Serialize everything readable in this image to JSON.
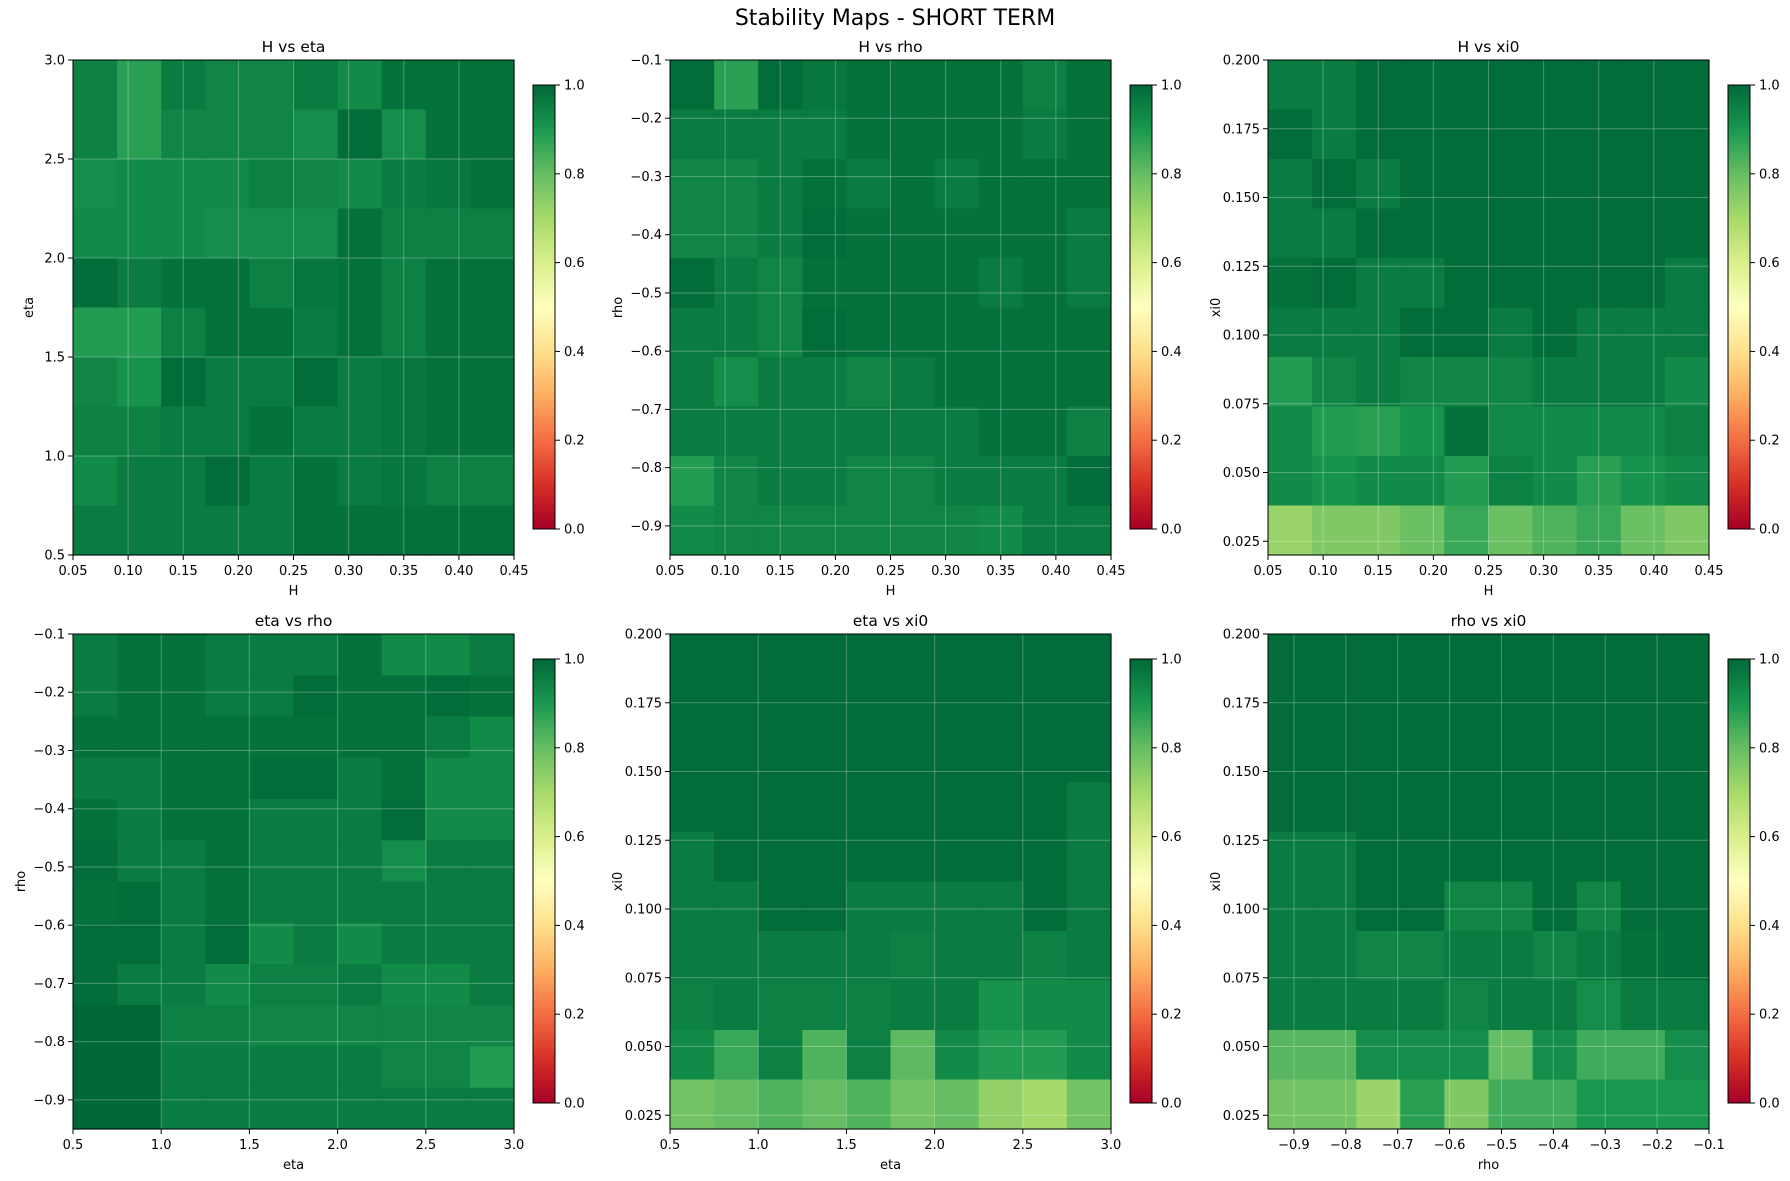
{
  "figure_title": "Stability Maps - SHORT TERM",
  "colormap": {
    "name": "RdYlGn",
    "stops": [
      "#a50026",
      "#d73027",
      "#f46d43",
      "#fdae61",
      "#fee08b",
      "#ffffbf",
      "#d9ef8b",
      "#a6d96a",
      "#66bd63",
      "#1a9850",
      "#006837"
    ],
    "range": [
      0,
      1
    ],
    "ticks": [
      0.0,
      0.2,
      0.4,
      0.6,
      0.8,
      1.0
    ],
    "tick_labels": [
      "0.0",
      "0.2",
      "0.4",
      "0.6",
      "0.8",
      "1.0"
    ]
  },
  "chart_data": [
    {
      "type": "heatmap",
      "title": "H vs eta",
      "xlabel": "H",
      "ylabel": "eta",
      "xlim": [
        0.05,
        0.45
      ],
      "ylim": [
        0.5,
        3.0
      ],
      "xticks": [
        0.05,
        0.1,
        0.15,
        0.2,
        0.25,
        0.3,
        0.35,
        0.4,
        0.45
      ],
      "xtick_labels": [
        "0.05",
        "0.10",
        "0.15",
        "0.20",
        "0.25",
        "0.30",
        "0.35",
        "0.40",
        "0.45"
      ],
      "yticks": [
        0.5,
        1.0,
        1.5,
        2.0,
        2.5,
        3.0
      ],
      "ytick_labels": [
        "0.5",
        "1.0",
        "1.5",
        "2.0",
        "2.5",
        "3.0"
      ],
      "values_top_to_bottom": [
        [
          0.95,
          0.88,
          0.96,
          0.94,
          0.94,
          0.96,
          0.93,
          0.98,
          0.98,
          0.98
        ],
        [
          0.95,
          0.88,
          0.94,
          0.94,
          0.94,
          0.92,
          0.99,
          0.92,
          0.98,
          0.98
        ],
        [
          0.92,
          0.93,
          0.93,
          0.93,
          0.95,
          0.94,
          0.93,
          0.96,
          0.97,
          0.98
        ],
        [
          0.93,
          0.93,
          0.93,
          0.92,
          0.92,
          0.92,
          0.98,
          0.95,
          0.95,
          0.95
        ],
        [
          0.99,
          0.96,
          0.98,
          0.98,
          0.95,
          0.97,
          0.98,
          0.95,
          0.98,
          0.98
        ],
        [
          0.89,
          0.89,
          0.95,
          0.98,
          0.98,
          0.96,
          0.98,
          0.95,
          0.98,
          0.98
        ],
        [
          0.94,
          0.91,
          0.99,
          0.96,
          0.96,
          0.99,
          0.96,
          0.97,
          0.98,
          0.98
        ],
        [
          0.95,
          0.95,
          0.96,
          0.96,
          0.98,
          0.96,
          0.96,
          0.97,
          0.98,
          0.98
        ],
        [
          0.93,
          0.96,
          0.96,
          0.99,
          0.96,
          0.98,
          0.96,
          0.97,
          0.95,
          0.95
        ],
        [
          0.96,
          0.96,
          0.96,
          0.96,
          0.96,
          0.98,
          0.98,
          0.98,
          0.98,
          0.98
        ]
      ]
    },
    {
      "type": "heatmap",
      "title": "H vs rho",
      "xlabel": "H",
      "ylabel": "rho",
      "xlim": [
        0.05,
        0.45
      ],
      "ylim": [
        -0.95,
        -0.1
      ],
      "xticks": [
        0.05,
        0.1,
        0.15,
        0.2,
        0.25,
        0.3,
        0.35,
        0.4,
        0.45
      ],
      "xtick_labels": [
        "0.05",
        "0.10",
        "0.15",
        "0.20",
        "0.25",
        "0.30",
        "0.35",
        "0.40",
        "0.45"
      ],
      "yticks": [
        -0.1,
        -0.2,
        -0.3,
        -0.4,
        -0.5,
        -0.6,
        -0.7,
        -0.8,
        -0.9
      ],
      "ytick_labels": [
        "−0.1",
        "−0.2",
        "−0.3",
        "−0.4",
        "−0.5",
        "−0.6",
        "−0.7",
        "−0.8",
        "−0.9"
      ],
      "values_top_to_bottom": [
        [
          0.99,
          0.88,
          0.99,
          0.97,
          0.98,
          0.98,
          0.98,
          0.98,
          0.95,
          0.98
        ],
        [
          0.96,
          0.96,
          0.96,
          0.96,
          0.98,
          0.98,
          0.98,
          0.98,
          0.96,
          0.98
        ],
        [
          0.94,
          0.94,
          0.96,
          0.98,
          0.96,
          0.98,
          0.96,
          0.98,
          0.98,
          0.98
        ],
        [
          0.94,
          0.94,
          0.96,
          0.99,
          0.98,
          0.98,
          0.98,
          0.98,
          0.98,
          0.96
        ],
        [
          0.99,
          0.96,
          0.94,
          0.98,
          0.98,
          0.98,
          0.98,
          0.96,
          0.98,
          0.96
        ],
        [
          0.96,
          0.96,
          0.94,
          0.99,
          0.98,
          0.98,
          0.98,
          0.98,
          0.98,
          0.98
        ],
        [
          0.96,
          0.92,
          0.96,
          0.96,
          0.94,
          0.96,
          0.98,
          0.98,
          0.98,
          0.98
        ],
        [
          0.96,
          0.96,
          0.96,
          0.96,
          0.96,
          0.96,
          0.96,
          0.98,
          0.98,
          0.95
        ],
        [
          0.89,
          0.94,
          0.96,
          0.96,
          0.94,
          0.94,
          0.96,
          0.96,
          0.96,
          0.99
        ],
        [
          0.93,
          0.94,
          0.94,
          0.94,
          0.94,
          0.94,
          0.94,
          0.93,
          0.96,
          0.96
        ]
      ]
    },
    {
      "type": "heatmap",
      "title": "H vs xi0",
      "xlabel": "H",
      "ylabel": "xi0",
      "xlim": [
        0.05,
        0.45
      ],
      "ylim": [
        0.02,
        0.2
      ],
      "xticks": [
        0.05,
        0.1,
        0.15,
        0.2,
        0.25,
        0.3,
        0.35,
        0.4,
        0.45
      ],
      "xtick_labels": [
        "0.05",
        "0.10",
        "0.15",
        "0.20",
        "0.25",
        "0.30",
        "0.35",
        "0.40",
        "0.45"
      ],
      "yticks": [
        0.025,
        0.05,
        0.075,
        0.1,
        0.125,
        0.15,
        0.175,
        0.2
      ],
      "ytick_labels": [
        "0.025",
        "0.050",
        "0.075",
        "0.100",
        "0.125",
        "0.150",
        "0.175",
        "0.200"
      ],
      "values_top_to_bottom": [
        [
          0.96,
          0.96,
          0.99,
          0.99,
          0.99,
          0.99,
          0.99,
          0.99,
          0.99,
          0.99
        ],
        [
          0.99,
          0.96,
          0.99,
          0.99,
          0.99,
          0.99,
          0.99,
          0.99,
          0.99,
          0.99
        ],
        [
          0.96,
          0.99,
          0.96,
          0.99,
          0.99,
          0.99,
          0.99,
          0.99,
          0.99,
          0.99
        ],
        [
          0.96,
          0.96,
          0.99,
          0.99,
          0.99,
          0.99,
          0.99,
          0.99,
          0.99,
          0.99
        ],
        [
          0.98,
          0.99,
          0.96,
          0.96,
          0.99,
          0.99,
          0.99,
          0.99,
          0.99,
          0.96
        ],
        [
          0.96,
          0.96,
          0.96,
          0.99,
          0.99,
          0.96,
          0.99,
          0.96,
          0.96,
          0.96
        ],
        [
          0.89,
          0.94,
          0.96,
          0.94,
          0.94,
          0.94,
          0.96,
          0.96,
          0.96,
          0.93
        ],
        [
          0.93,
          0.89,
          0.88,
          0.91,
          0.98,
          0.93,
          0.93,
          0.93,
          0.93,
          0.95
        ],
        [
          0.93,
          0.91,
          0.93,
          0.93,
          0.89,
          0.95,
          0.93,
          0.88,
          0.91,
          0.93
        ],
        [
          0.72,
          0.76,
          0.76,
          0.79,
          0.86,
          0.79,
          0.83,
          0.86,
          0.79,
          0.76
        ]
      ]
    },
    {
      "type": "heatmap",
      "title": "eta vs rho",
      "xlabel": "eta",
      "ylabel": "rho",
      "xlim": [
        0.5,
        3.0
      ],
      "ylim": [
        -0.95,
        -0.1
      ],
      "xticks": [
        0.5,
        1.0,
        1.5,
        2.0,
        2.5,
        3.0
      ],
      "xtick_labels": [
        "0.5",
        "1.0",
        "1.5",
        "2.0",
        "2.5",
        "3.0"
      ],
      "yticks": [
        -0.1,
        -0.2,
        -0.3,
        -0.4,
        -0.5,
        -0.6,
        -0.7,
        -0.8,
        -0.9
      ],
      "ytick_labels": [
        "−0.1",
        "−0.2",
        "−0.3",
        "−0.4",
        "−0.5",
        "−0.6",
        "−0.7",
        "−0.8",
        "−0.9"
      ],
      "values_top_to_bottom": [
        [
          0.96,
          0.98,
          0.98,
          0.96,
          0.96,
          0.96,
          0.98,
          0.93,
          0.93,
          0.96
        ],
        [
          0.96,
          0.98,
          0.98,
          0.96,
          0.96,
          0.99,
          0.98,
          0.98,
          0.99,
          0.98
        ],
        [
          0.98,
          0.98,
          0.98,
          0.98,
          0.98,
          0.98,
          0.98,
          0.98,
          0.96,
          0.93
        ],
        [
          0.96,
          0.96,
          0.98,
          0.98,
          0.99,
          0.99,
          0.96,
          0.98,
          0.93,
          0.93
        ],
        [
          0.98,
          0.96,
          0.98,
          0.98,
          0.96,
          0.96,
          0.96,
          0.99,
          0.93,
          0.93
        ],
        [
          0.99,
          0.96,
          0.96,
          0.98,
          0.96,
          0.96,
          0.96,
          0.92,
          0.96,
          0.96
        ],
        [
          0.98,
          0.99,
          0.96,
          0.98,
          0.96,
          0.96,
          0.96,
          0.96,
          0.96,
          0.96
        ],
        [
          0.99,
          0.99,
          0.96,
          0.99,
          0.93,
          0.96,
          0.93,
          0.96,
          0.96,
          0.96
        ],
        [
          0.99,
          0.96,
          0.96,
          0.93,
          0.95,
          0.95,
          0.96,
          0.93,
          0.93,
          0.96
        ],
        [
          1.0,
          1.0,
          0.95,
          0.95,
          0.94,
          0.94,
          0.94,
          0.94,
          0.94,
          0.94
        ],
        [
          1.0,
          1.0,
          0.96,
          0.96,
          0.96,
          0.96,
          0.96,
          0.94,
          0.94,
          0.89
        ],
        [
          1.0,
          1.0,
          0.96,
          0.96,
          0.96,
          0.96,
          0.96,
          0.96,
          0.96,
          0.96
        ]
      ]
    },
    {
      "type": "heatmap",
      "title": "eta vs xi0",
      "xlabel": "eta",
      "ylabel": "xi0",
      "xlim": [
        0.5,
        3.0
      ],
      "ylim": [
        0.02,
        0.2
      ],
      "xticks": [
        0.5,
        1.0,
        1.5,
        2.0,
        2.5,
        3.0
      ],
      "xtick_labels": [
        "0.5",
        "1.0",
        "1.5",
        "2.0",
        "2.5",
        "3.0"
      ],
      "yticks": [
        0.025,
        0.05,
        0.075,
        0.1,
        0.125,
        0.15,
        0.175,
        0.2
      ],
      "ytick_labels": [
        "0.025",
        "0.050",
        "0.075",
        "0.100",
        "0.125",
        "0.150",
        "0.175",
        "0.200"
      ],
      "values_top_to_bottom": [
        [
          0.99,
          0.99,
          0.99,
          0.99,
          0.99,
          0.99,
          0.99,
          0.99,
          0.99,
          0.99
        ],
        [
          0.99,
          0.99,
          0.99,
          0.99,
          0.99,
          0.99,
          0.99,
          0.99,
          0.99,
          0.99
        ],
        [
          0.99,
          0.99,
          0.99,
          0.99,
          0.99,
          0.99,
          0.99,
          0.99,
          0.99,
          0.99
        ],
        [
          0.99,
          0.99,
          0.99,
          0.99,
          0.99,
          0.99,
          0.99,
          0.99,
          0.99,
          0.96
        ],
        [
          0.96,
          0.99,
          0.99,
          0.99,
          0.99,
          0.99,
          0.99,
          0.99,
          0.99,
          0.96
        ],
        [
          0.96,
          0.96,
          0.99,
          0.99,
          0.96,
          0.96,
          0.96,
          0.96,
          0.99,
          0.96
        ],
        [
          0.96,
          0.96,
          0.96,
          0.96,
          0.96,
          0.95,
          0.96,
          0.96,
          0.95,
          0.96
        ],
        [
          0.95,
          0.96,
          0.95,
          0.95,
          0.95,
          0.96,
          0.96,
          0.91,
          0.93,
          0.93
        ],
        [
          0.93,
          0.86,
          0.95,
          0.83,
          0.95,
          0.81,
          0.93,
          0.89,
          0.89,
          0.93
        ],
        [
          0.78,
          0.8,
          0.83,
          0.8,
          0.83,
          0.78,
          0.8,
          0.73,
          0.7,
          0.78
        ]
      ]
    },
    {
      "type": "heatmap",
      "title": "rho vs xi0",
      "xlabel": "rho",
      "ylabel": "xi0",
      "xlim": [
        -0.95,
        -0.1
      ],
      "ylim": [
        0.02,
        0.2
      ],
      "xticks": [
        -0.9,
        -0.8,
        -0.7,
        -0.6,
        -0.5,
        -0.4,
        -0.3,
        -0.2,
        -0.1
      ],
      "xtick_labels": [
        "−0.9",
        "−0.8",
        "−0.7",
        "−0.6",
        "−0.5",
        "−0.4",
        "−0.3",
        "−0.2",
        "−0.1"
      ],
      "yticks": [
        0.025,
        0.05,
        0.075,
        0.1,
        0.125,
        0.15,
        0.175,
        0.2
      ],
      "ytick_labels": [
        "0.025",
        "0.050",
        "0.075",
        "0.100",
        "0.125",
        "0.150",
        "0.175",
        "0.200"
      ],
      "values_top_to_bottom": [
        [
          0.99,
          0.99,
          0.99,
          0.99,
          0.99,
          0.99,
          0.99,
          0.99,
          0.99,
          0.99
        ],
        [
          0.99,
          0.99,
          0.99,
          0.99,
          0.99,
          0.99,
          0.99,
          0.99,
          0.99,
          0.99
        ],
        [
          0.99,
          0.99,
          0.99,
          0.99,
          0.99,
          0.99,
          0.99,
          0.99,
          0.99,
          0.99
        ],
        [
          0.99,
          0.99,
          0.99,
          0.99,
          0.99,
          0.99,
          0.99,
          0.99,
          0.99,
          0.99
        ],
        [
          0.96,
          0.96,
          0.99,
          0.99,
          0.99,
          0.99,
          0.99,
          0.99,
          0.99,
          0.99
        ],
        [
          0.96,
          0.96,
          0.99,
          0.99,
          0.94,
          0.94,
          0.99,
          0.94,
          0.99,
          0.99
        ],
        [
          0.96,
          0.96,
          0.94,
          0.94,
          0.96,
          0.96,
          0.94,
          0.96,
          0.98,
          0.99
        ],
        [
          0.96,
          0.96,
          0.96,
          0.96,
          0.94,
          0.96,
          0.96,
          0.92,
          0.96,
          0.96
        ],
        [
          0.82,
          0.82,
          0.92,
          0.92,
          0.92,
          0.8,
          0.92,
          0.85,
          0.85,
          0.92
        ],
        [
          0.78,
          0.78,
          0.72,
          0.88,
          0.76,
          0.85,
          0.85,
          0.9,
          0.9,
          0.9
        ]
      ]
    }
  ]
}
